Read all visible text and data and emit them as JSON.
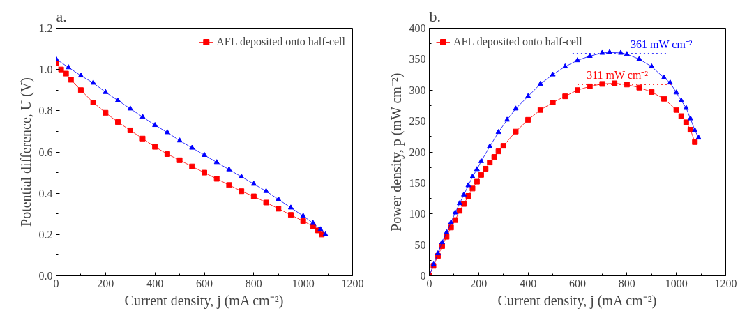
{
  "chart_data": [
    {
      "type": "line",
      "title": "a.",
      "xlabel": "Current density, j (mA cm⁻²)",
      "ylabel": "Potential difference, U (V)",
      "xlim": [
        0,
        1200
      ],
      "ylim": [
        0,
        1.2
      ],
      "xticks": [
        0,
        200,
        400,
        600,
        800,
        1000,
        1200
      ],
      "yticks": [
        {
          "value": 0,
          "label": "0.0"
        },
        0.2,
        0.4,
        0.6,
        0.8,
        {
          "value": 1,
          "label": "1.0"
        },
        1.2
      ],
      "grid": false,
      "legend": "top right",
      "line_style": "solid",
      "series": [
        {
          "name": "AFL deposited onto half-cell",
          "color": "#ff0000",
          "marker": "square",
          "x": [
            0,
            20,
            40,
            60,
            100,
            150,
            200,
            250,
            300,
            350,
            400,
            450,
            500,
            550,
            600,
            650,
            700,
            750,
            800,
            850,
            900,
            950,
            1000,
            1040,
            1060,
            1075
          ],
          "values": [
            1.03,
            1.0,
            0.98,
            0.95,
            0.9,
            0.84,
            0.79,
            0.745,
            0.705,
            0.665,
            0.625,
            0.59,
            0.56,
            0.53,
            0.5,
            0.47,
            0.44,
            0.41,
            0.385,
            0.355,
            0.325,
            0.295,
            0.265,
            0.24,
            0.22,
            0.2
          ]
        },
        {
          "color": "#0000ff",
          "marker": "triangle",
          "x": [
            0,
            50,
            100,
            150,
            200,
            250,
            300,
            350,
            400,
            450,
            500,
            550,
            600,
            650,
            700,
            750,
            800,
            850,
            900,
            950,
            1000,
            1040,
            1070,
            1090
          ],
          "values": [
            1.05,
            1.01,
            0.97,
            0.935,
            0.89,
            0.85,
            0.81,
            0.77,
            0.73,
            0.695,
            0.655,
            0.62,
            0.585,
            0.55,
            0.515,
            0.48,
            0.445,
            0.41,
            0.37,
            0.33,
            0.29,
            0.255,
            0.225,
            0.2
          ]
        }
      ]
    },
    {
      "type": "line",
      "title": "b.",
      "xlabel": "Current density, j (mA cm⁻²)",
      "ylabel": "Power density, p (mW cm⁻²)",
      "xlim": [
        0,
        1200
      ],
      "ylim": [
        0,
        400
      ],
      "xticks": [
        0,
        200,
        400,
        600,
        800,
        1000,
        1200
      ],
      "yticks": [
        0,
        50,
        100,
        150,
        200,
        250,
        300,
        350,
        400
      ],
      "grid": false,
      "legend": "top left",
      "line_style": "solid",
      "annotations": [
        {
          "text": "361 mW cm⁻²",
          "x": 730,
          "y": 361
        },
        {
          "text": "311 mW cm⁻²",
          "x": 750,
          "y": 311
        }
      ],
      "series": [
        {
          "name": "AFL deposited onto half-cell",
          "color": "#ff0000",
          "marker": "square",
          "x": [
            0,
            17,
            35,
            52,
            70,
            88,
            105,
            123,
            140,
            158,
            175,
            193,
            210,
            228,
            245,
            263,
            280,
            300,
            350,
            400,
            450,
            500,
            550,
            600,
            650,
            700,
            750,
            800,
            850,
            900,
            950,
            1000,
            1020,
            1040,
            1057,
            1075
          ],
          "values": [
            0,
            16,
            32,
            48,
            63,
            78,
            90,
            105,
            116,
            129,
            141,
            152,
            163,
            173,
            183,
            192,
            201,
            210,
            233,
            252,
            268,
            280,
            290,
            300,
            306,
            310,
            311,
            309,
            304,
            297,
            286,
            268,
            258,
            248,
            236,
            216
          ]
        },
        {
          "color": "#0000ff",
          "marker": "triangle",
          "x": [
            0,
            17,
            35,
            52,
            70,
            88,
            105,
            123,
            140,
            158,
            175,
            193,
            210,
            245,
            280,
            315,
            350,
            400,
            450,
            500,
            550,
            600,
            650,
            700,
            730,
            775,
            800,
            850,
            900,
            950,
            975,
            1000,
            1020,
            1040,
            1057,
            1075,
            1090
          ],
          "values": [
            0,
            18,
            36,
            54,
            70,
            86,
            102,
            117,
            131,
            146,
            160,
            172,
            185,
            209,
            232,
            252,
            270,
            290,
            310,
            325,
            338,
            348,
            355,
            360,
            361,
            360,
            358,
            350,
            338,
            320,
            312,
            296,
            283,
            271,
            254,
            235,
            223
          ]
        }
      ]
    }
  ]
}
